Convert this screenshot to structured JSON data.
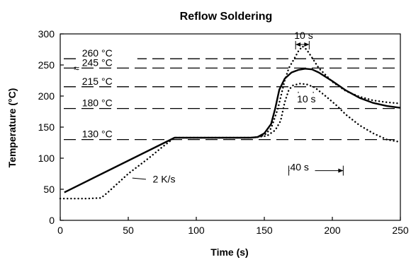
{
  "chart_data": {
    "type": "line",
    "title": "Reflow Soldering",
    "xlabel": "Time (s)",
    "ylabel": "Temperature (°C)",
    "xlim": [
      0,
      250
    ],
    "ylim": [
      0,
      300
    ],
    "x_ticks": [
      0,
      50,
      100,
      150,
      200,
      250
    ],
    "y_ticks": [
      0,
      50,
      100,
      150,
      200,
      250,
      300
    ],
    "reference_lines": [
      {
        "value": 260,
        "label": "260 °C"
      },
      {
        "value": 245,
        "label": "245 °C",
        "prefix": "≈"
      },
      {
        "value": 215,
        "label": "215 °C"
      },
      {
        "value": 180,
        "label": "180 °C"
      },
      {
        "value": 130,
        "label": "130 °C"
      }
    ],
    "series": [
      {
        "style": "solid",
        "points": [
          [
            3,
            45
          ],
          [
            84,
            133
          ],
          [
            90,
            133
          ],
          [
            140,
            133
          ],
          [
            145,
            134
          ],
          [
            150,
            140
          ],
          [
            155,
            155
          ],
          [
            158,
            180
          ],
          [
            161,
            210
          ],
          [
            165,
            228
          ],
          [
            170,
            238
          ],
          [
            175,
            242
          ],
          [
            180,
            244
          ],
          [
            185,
            243
          ],
          [
            190,
            238
          ],
          [
            200,
            224
          ],
          [
            210,
            209
          ],
          [
            220,
            197
          ],
          [
            230,
            189
          ],
          [
            240,
            184
          ],
          [
            250,
            181
          ]
        ]
      },
      {
        "style": "dotted",
        "points": [
          [
            0,
            35
          ],
          [
            20,
            35
          ],
          [
            30,
            36
          ],
          [
            35,
            45
          ],
          [
            50,
            75
          ],
          [
            65,
            100
          ],
          [
            75,
            118
          ],
          [
            84,
            133
          ],
          [
            90,
            133
          ],
          [
            140,
            133
          ],
          [
            145,
            134
          ],
          [
            150,
            137
          ],
          [
            155,
            148
          ],
          [
            160,
            180
          ],
          [
            165,
            225
          ],
          [
            168,
            245
          ],
          [
            172,
            260
          ],
          [
            175,
            272
          ],
          [
            178,
            280
          ],
          [
            181,
            275
          ],
          [
            185,
            262
          ],
          [
            190,
            245
          ],
          [
            200,
            223
          ],
          [
            210,
            208
          ],
          [
            220,
            199
          ],
          [
            230,
            193
          ],
          [
            240,
            190
          ],
          [
            250,
            188
          ]
        ]
      },
      {
        "style": "dotted",
        "points": [
          [
            145,
            134
          ],
          [
            152,
            136
          ],
          [
            158,
            145
          ],
          [
            162,
            160
          ],
          [
            165,
            190
          ],
          [
            168,
            210
          ],
          [
            171,
            217
          ],
          [
            176,
            220
          ],
          [
            181,
            219
          ],
          [
            187,
            214
          ],
          [
            195,
            200
          ],
          [
            203,
            185
          ],
          [
            210,
            170
          ],
          [
            220,
            153
          ],
          [
            230,
            140
          ],
          [
            240,
            130
          ],
          [
            250,
            126
          ]
        ]
      }
    ],
    "annotations": [
      {
        "text": "2 K/s",
        "x": 68,
        "y": 61,
        "pointer": [
          [
            53,
            68
          ],
          [
            63,
            66
          ]
        ]
      },
      {
        "text": "10 s",
        "x": 172,
        "y": 292,
        "span": [
          173,
          183
        ],
        "span_y": 283
      },
      {
        "text": "10 s",
        "x": 174,
        "y": 190,
        "span": [
          175,
          186
        ],
        "span_y": 199
      },
      {
        "text": "40 s",
        "x": 169,
        "y": 80,
        "span": [
          168,
          208
        ],
        "span_y": 80
      }
    ]
  }
}
